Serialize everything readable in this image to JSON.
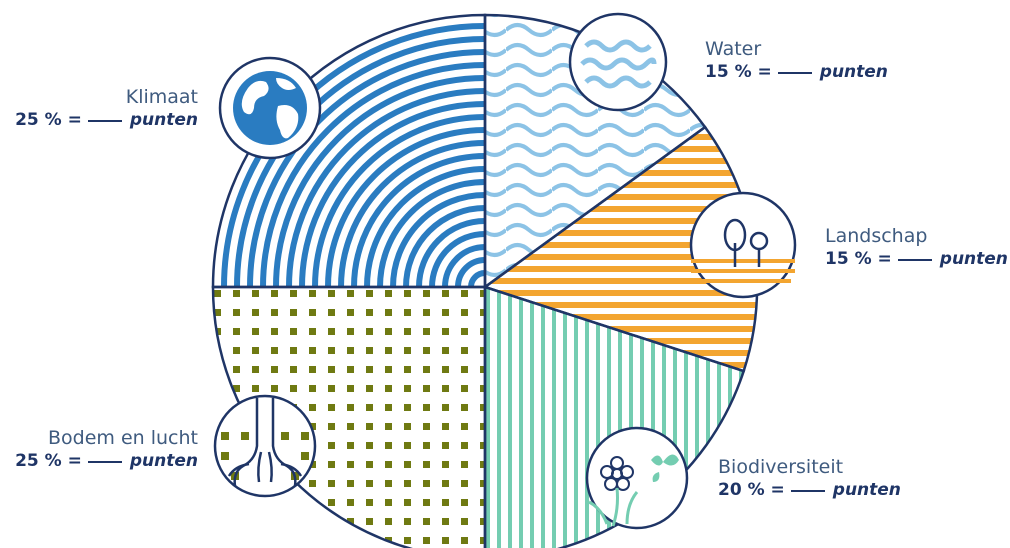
{
  "colors": {
    "outline": "#1f3566",
    "klimaat": "#2a7cc1",
    "water": "#8cc3e6",
    "landschap": "#f3a530",
    "biodiversiteit": "#74cdb1",
    "bodem": "#6f7a12"
  },
  "chart_data": {
    "type": "pie",
    "title": "",
    "slices": [
      {
        "key": "klimaat",
        "label": "Klimaat",
        "value": 25,
        "percent_text": "25 % =",
        "unit": "punten",
        "icon": "globe-icon"
      },
      {
        "key": "water",
        "label": "Water",
        "value": 15,
        "percent_text": "15 % =",
        "unit": "punten",
        "icon": "waves-icon"
      },
      {
        "key": "landschap",
        "label": "Landschap",
        "value": 15,
        "percent_text": "15 % =",
        "unit": "punten",
        "icon": "trees-icon"
      },
      {
        "key": "biodiversiteit",
        "label": "Biodiversiteit",
        "value": 20,
        "percent_text": "20 % =",
        "unit": "punten",
        "icon": "flower-butterfly-icon"
      },
      {
        "key": "bodem",
        "label": "Bodem en lucht",
        "value": 25,
        "percent_text": "25 % =",
        "unit": "punten",
        "icon": "roots-icon"
      }
    ]
  }
}
